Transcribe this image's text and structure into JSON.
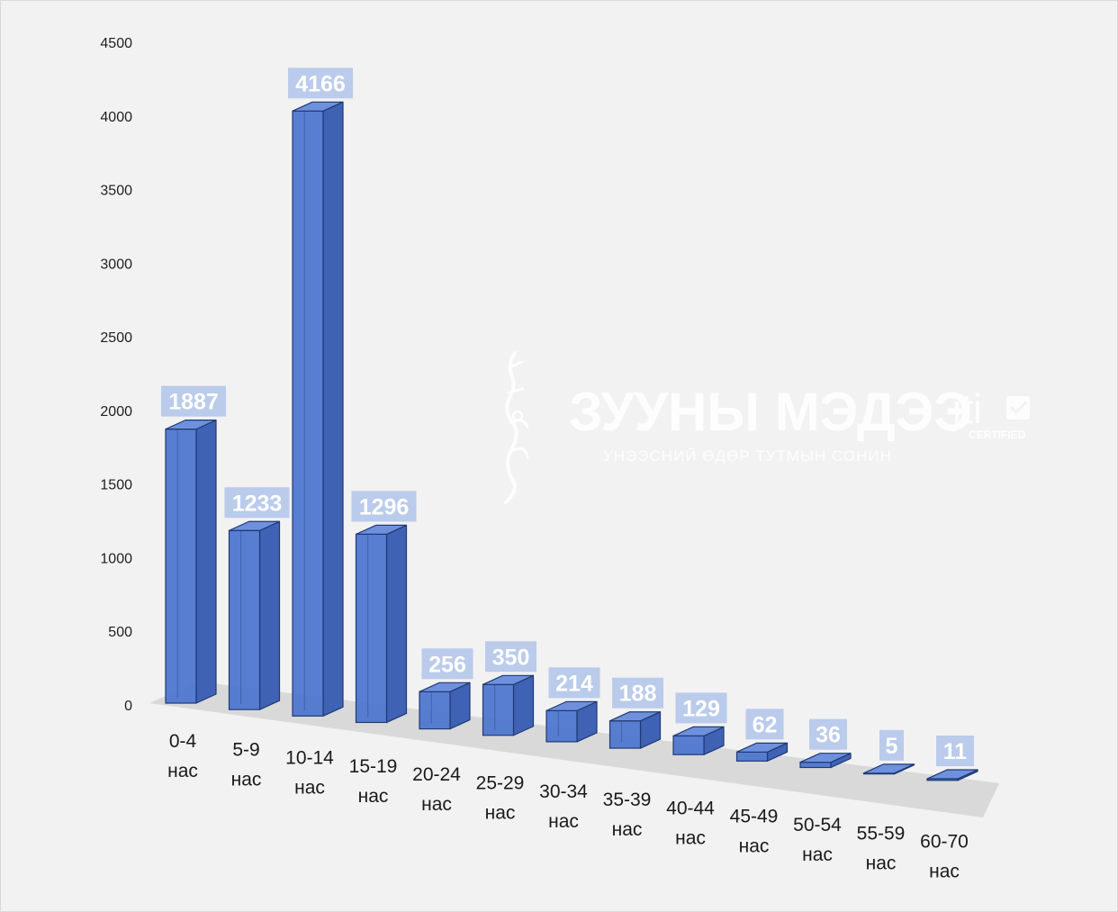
{
  "chart_data": {
    "type": "bar",
    "style": "3d-column",
    "categories": [
      [
        "0-4",
        "нас"
      ],
      [
        "5-9",
        "нас"
      ],
      [
        "10-14",
        "нас"
      ],
      [
        "15-19",
        "нас"
      ],
      [
        "20-24",
        "нас"
      ],
      [
        "25-29",
        "нас"
      ],
      [
        "30-34",
        "нас"
      ],
      [
        "35-39",
        "нас"
      ],
      [
        "40-44",
        "нас"
      ],
      [
        "45-49",
        "нас"
      ],
      [
        "50-54",
        "нас"
      ],
      [
        "55-59",
        "нас"
      ],
      [
        "60-70",
        "нас"
      ]
    ],
    "values": [
      1887,
      1233,
      4166,
      1296,
      256,
      350,
      214,
      188,
      129,
      62,
      36,
      5,
      11
    ],
    "data_labels": [
      "1887",
      "1233",
      "4166",
      "1296",
      "256",
      "350",
      "214",
      "188",
      "129",
      "62",
      "36",
      "5",
      "11"
    ],
    "yticks": [
      "0",
      "500",
      "1000",
      "1500",
      "2000",
      "2500",
      "3000",
      "3500",
      "4000",
      "4500"
    ],
    "ylim": [
      0,
      4500
    ],
    "title": "",
    "xlabel": "",
    "ylabel": "",
    "grid": false,
    "legend": "none",
    "colors": {
      "bar_front": "#4f77d0",
      "bar_side": "#3f62b4",
      "bar_top": "#6f91dd",
      "bar_edge": "#1f3a73",
      "label_box": "#b4c6ea",
      "floor": "#d9d9d9"
    }
  },
  "watermark": {
    "title": "ЗУУНЫ МЭДЭЭ",
    "subtitle": "УНЭЭСНИЙ ӨДӨР ТУТМЫН СОНИН",
    "badge": "jti",
    "badge_sub": "CERTIFIED",
    "icon": "mongolian-script-logo-icon"
  }
}
